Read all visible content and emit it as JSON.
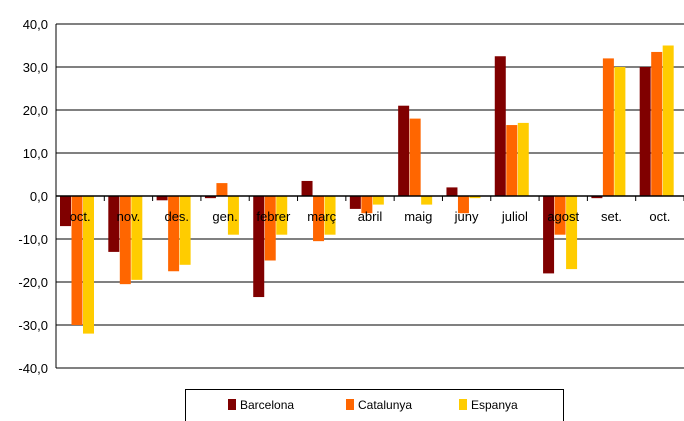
{
  "chart_data": {
    "type": "bar",
    "categories": [
      "oct.",
      "nov.",
      "des.",
      "gen.",
      "febrer",
      "març",
      "abril",
      "maig",
      "juny",
      "juliol",
      "agost",
      "set.",
      "oct."
    ],
    "series": [
      {
        "name": "Barcelona",
        "values": [
          -7,
          -13,
          -1,
          -0.5,
          -23.5,
          3.5,
          -3,
          21,
          2,
          32.5,
          -18,
          -0.5,
          30
        ]
      },
      {
        "name": "Catalunya",
        "values": [
          -30,
          -20.5,
          -17.5,
          3,
          -15,
          -10.5,
          -4,
          18,
          -4,
          16.5,
          -9,
          32,
          33.5
        ]
      },
      {
        "name": "Espanya",
        "values": [
          -32,
          -19.5,
          -16,
          -9,
          -9,
          -9,
          -2,
          -2,
          -0.5,
          17,
          -17,
          30,
          35
        ]
      }
    ],
    "colors": [
      "#800000",
      "#ff6600",
      "#ffcc00"
    ],
    "ylim": [
      -40,
      40
    ],
    "yticks": [
      "-40,0",
      "-30,0",
      "-20,0",
      "-10,0",
      "0,0",
      "10,0",
      "20,0",
      "30,0",
      "40,0"
    ],
    "grid": true,
    "legend_position": "bottom"
  }
}
